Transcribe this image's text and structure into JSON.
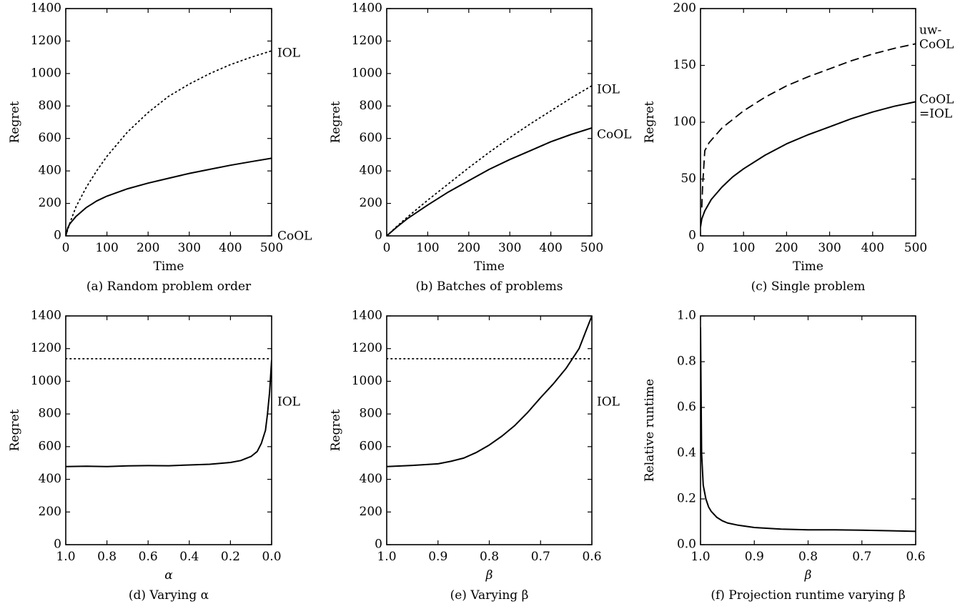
{
  "chart_data": [
    {
      "type": "line",
      "caption": "(a) Random problem order",
      "xlabel": "Time",
      "ylabel": "Regret",
      "xlim": [
        0,
        500
      ],
      "ylim": [
        0,
        1400
      ],
      "xticks": [
        0,
        100,
        200,
        300,
        400,
        500
      ],
      "yticks": [
        0,
        200,
        400,
        600,
        800,
        1000,
        1200,
        1400
      ],
      "series": [
        {
          "name": "IOL",
          "style": "dotted",
          "x": [
            0,
            10,
            25,
            50,
            75,
            100,
            150,
            200,
            250,
            300,
            350,
            400,
            450,
            500
          ],
          "y": [
            0,
            80,
            180,
            300,
            400,
            490,
            640,
            760,
            860,
            935,
            1000,
            1055,
            1100,
            1140
          ]
        },
        {
          "name": "CoOL",
          "style": "solid",
          "x": [
            0,
            5,
            10,
            25,
            50,
            75,
            100,
            150,
            200,
            250,
            300,
            350,
            400,
            450,
            500
          ],
          "y": [
            0,
            50,
            75,
            120,
            175,
            215,
            245,
            290,
            325,
            355,
            385,
            410,
            435,
            457,
            478
          ]
        }
      ]
    },
    {
      "type": "line",
      "caption": "(b) Batches of problems",
      "xlabel": "Time",
      "ylabel": "Regret",
      "xlim": [
        0,
        500
      ],
      "ylim": [
        0,
        1400
      ],
      "xticks": [
        0,
        100,
        200,
        300,
        400,
        500
      ],
      "yticks": [
        0,
        200,
        400,
        600,
        800,
        1000,
        1200,
        1400
      ],
      "series": [
        {
          "name": "IOL",
          "style": "dotted",
          "x": [
            0,
            25,
            50,
            100,
            150,
            200,
            250,
            300,
            350,
            400,
            450,
            500
          ],
          "y": [
            0,
            60,
            115,
            220,
            320,
            420,
            515,
            605,
            690,
            770,
            850,
            925
          ]
        },
        {
          "name": "CoOL",
          "style": "solid",
          "x": [
            0,
            25,
            50,
            100,
            150,
            200,
            250,
            300,
            350,
            400,
            450,
            500
          ],
          "y": [
            0,
            55,
            105,
            190,
            270,
            340,
            410,
            470,
            525,
            580,
            625,
            665
          ]
        }
      ]
    },
    {
      "type": "line",
      "caption": "(c) Single problem",
      "xlabel": "Time",
      "ylabel": "Regret",
      "xlim": [
        0,
        500
      ],
      "ylim": [
        0,
        200
      ],
      "xticks": [
        0,
        100,
        200,
        300,
        400,
        500
      ],
      "yticks": [
        0,
        50,
        100,
        150,
        200
      ],
      "series": [
        {
          "name": "uw-CoOL",
          "style": "dashed",
          "x": [
            3,
            5,
            10,
            20,
            50,
            100,
            150,
            200,
            250,
            300,
            350,
            400,
            450,
            500
          ],
          "y": [
            25,
            45,
            75,
            82,
            95,
            110,
            122,
            132,
            140,
            147,
            154,
            160,
            165,
            169
          ]
        },
        {
          "name": "CoOL =IOL",
          "style": "solid",
          "x": [
            0,
            3,
            10,
            25,
            50,
            75,
            100,
            150,
            200,
            250,
            300,
            350,
            400,
            450,
            500
          ],
          "y": [
            8,
            15,
            22,
            32,
            43,
            52,
            59,
            71,
            81,
            89,
            96,
            103,
            109,
            114,
            118
          ]
        }
      ]
    },
    {
      "type": "line",
      "caption": "(d) Varying α",
      "xlabel": "α",
      "ylabel": "Regret",
      "xlim": [
        1.0,
        0.0
      ],
      "ylim": [
        0,
        1400
      ],
      "xticks": [
        "1.0",
        "0.8",
        "0.6",
        "0.4",
        "0.2",
        "0.0"
      ],
      "yticks": [
        0,
        200,
        400,
        600,
        800,
        1000,
        1200,
        1400
      ],
      "series": [
        {
          "name": "IOL",
          "style": "dotted",
          "x": [
            1.0,
            0.0
          ],
          "y": [
            1138,
            1138
          ]
        },
        {
          "name": "",
          "style": "solid",
          "x": [
            1.0,
            0.9,
            0.8,
            0.7,
            0.6,
            0.5,
            0.4,
            0.3,
            0.2,
            0.15,
            0.1,
            0.07,
            0.05,
            0.03,
            0.02,
            0.01,
            0.0
          ],
          "y": [
            478,
            480,
            478,
            482,
            484,
            483,
            488,
            492,
            503,
            515,
            540,
            570,
            620,
            700,
            800,
            930,
            1130
          ]
        }
      ]
    },
    {
      "type": "line",
      "caption": "(e) Varying β",
      "xlabel": "β",
      "ylabel": "Regret",
      "xlim": [
        1.0,
        0.6
      ],
      "ylim": [
        0,
        1400
      ],
      "xticks": [
        "1.0",
        "0.9",
        "0.8",
        "0.7",
        "0.6"
      ],
      "yticks": [
        0,
        200,
        400,
        600,
        800,
        1000,
        1200,
        1400
      ],
      "series": [
        {
          "name": "IOL",
          "style": "dotted",
          "x": [
            1.0,
            0.6
          ],
          "y": [
            1138,
            1138
          ]
        },
        {
          "name": "",
          "style": "solid",
          "x": [
            1.0,
            0.95,
            0.9,
            0.875,
            0.85,
            0.825,
            0.8,
            0.775,
            0.75,
            0.725,
            0.7,
            0.675,
            0.65,
            0.625,
            0.61,
            0.6
          ],
          "y": [
            478,
            485,
            495,
            510,
            530,
            565,
            610,
            665,
            730,
            810,
            900,
            985,
            1080,
            1200,
            1320,
            1400
          ]
        }
      ]
    },
    {
      "type": "line",
      "caption": "(f) Projection runtime varying β",
      "xlabel": "β",
      "ylabel": "Relative runtime",
      "xlim": [
        1.0,
        0.6
      ],
      "ylim": [
        0.0,
        1.0
      ],
      "xticks": [
        "1.0",
        "0.9",
        "0.8",
        "0.7",
        "0.6"
      ],
      "yticks": [
        "0.0",
        "0.2",
        "0.4",
        "0.6",
        "0.8",
        "1.0"
      ],
      "series": [
        {
          "name": "",
          "style": "solid",
          "x": [
            1.0,
            0.998,
            0.995,
            0.99,
            0.985,
            0.98,
            0.97,
            0.96,
            0.95,
            0.93,
            0.9,
            0.85,
            0.8,
            0.75,
            0.7,
            0.65,
            0.6
          ],
          "y": [
            0.95,
            0.4,
            0.26,
            0.2,
            0.165,
            0.145,
            0.12,
            0.105,
            0.095,
            0.085,
            0.075,
            0.068,
            0.065,
            0.065,
            0.063,
            0.061,
            0.058
          ]
        }
      ]
    }
  ]
}
